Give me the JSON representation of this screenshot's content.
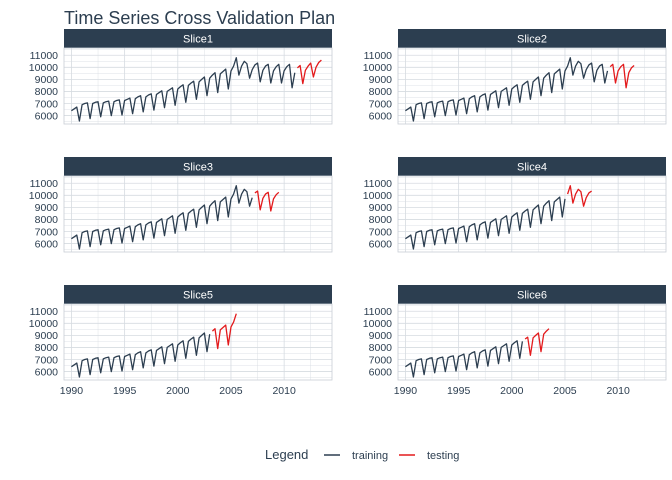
{
  "title": "Time Series Cross Validation Plan",
  "colors": {
    "training": "#2c3e50",
    "testing": "#e31a1c",
    "strip_bg": "#2c3e50",
    "grid": "#d6dbe1",
    "panel_border": "#c9ced6"
  },
  "legend": {
    "title": "Legend",
    "items": [
      {
        "label": "training",
        "color": "#2c3e50"
      },
      {
        "label": "testing",
        "color": "#e31a1c"
      }
    ]
  },
  "chart_data": {
    "type": "line",
    "layout": "facet grid 3 rows x 2 columns",
    "xlim": [
      1989.3,
      2014.5
    ],
    "ylim": [
      5300,
      11600
    ],
    "x_ticks": [
      1990,
      1995,
      2000,
      2005,
      2010
    ],
    "x_tick_labels": [
      "1990",
      "1995",
      "2000",
      "2005",
      "2010"
    ],
    "y_ticks": [
      6000,
      7000,
      8000,
      9000,
      10000,
      11000
    ],
    "y_tick_labels": [
      "6000",
      "7000",
      "8000",
      "9000",
      "10000",
      "11000"
    ],
    "series_base": {
      "start_year": 1990.0,
      "step_years": 0.25,
      "values": [
        6400,
        6550,
        6700,
        5550,
        6900,
        7000,
        7050,
        5750,
        7000,
        7100,
        7150,
        5900,
        7050,
        7150,
        7200,
        6000,
        7150,
        7250,
        7300,
        6050,
        7250,
        7350,
        7450,
        6150,
        7400,
        7550,
        7650,
        6300,
        7550,
        7700,
        7800,
        6450,
        7750,
        7900,
        8050,
        6650,
        8000,
        8150,
        8300,
        6850,
        8200,
        8400,
        8550,
        7100,
        8500,
        8700,
        8850,
        7350,
        8800,
        9000,
        9200,
        7650,
        9100,
        9350,
        9550,
        7900,
        9450,
        9650,
        9850,
        8200,
        9700,
        10100,
        10800,
        9350,
        10100,
        10500,
        10300,
        9100,
        9800,
        10200,
        10350,
        8800,
        9750,
        10100,
        10250,
        8700,
        9700,
        10050,
        10250,
        8700,
        9700,
        10050,
        10250,
        8300,
        9550,
        9950,
        10150,
        8650,
        9750,
        10100,
        10350,
        9200,
        10000,
        10400,
        10600,
        9200,
        10300,
        10600,
        10750,
        9400
      ]
    },
    "panels": [
      {
        "name": "Slice1",
        "train_end": 2011.0,
        "test_end": 2013.5
      },
      {
        "name": "Slice2",
        "train_end": 2009.0,
        "test_end": 2011.5
      },
      {
        "name": "Slice3",
        "train_end": 2007.0,
        "test_end": 2009.5
      },
      {
        "name": "Slice4",
        "train_end": 2005.0,
        "test_end": 2007.5
      },
      {
        "name": "Slice5",
        "train_end": 2003.0,
        "test_end": 2005.5
      },
      {
        "name": "Slice6",
        "train_end": 2001.0,
        "test_end": 2003.5
      }
    ]
  }
}
